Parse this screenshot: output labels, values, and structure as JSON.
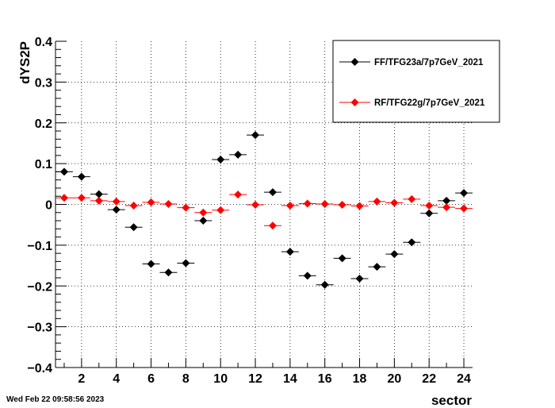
{
  "timestamp": "Wed Feb 22 09:58:56 2023",
  "chart_data": {
    "type": "scatter",
    "xlabel": "sector",
    "ylabel": "dYS2P",
    "xlim": [
      0.5,
      24.5
    ],
    "ylim": [
      -0.4,
      0.4
    ],
    "x_tick_labels": [
      "2",
      "4",
      "6",
      "8",
      "10",
      "12",
      "14",
      "16",
      "18",
      "20",
      "22",
      "24"
    ],
    "y_tick_labels": [
      "0.4",
      "0.3",
      "0.2",
      "0.1",
      "0",
      "−0.1",
      "−0.2",
      "−0.3",
      "−0.4"
    ],
    "grid": true,
    "legend_position": "top-right",
    "x": [
      1,
      2,
      3,
      4,
      5,
      6,
      7,
      8,
      9,
      10,
      11,
      12,
      13,
      14,
      15,
      16,
      17,
      18,
      19,
      20,
      21,
      22,
      23,
      24
    ],
    "series": [
      {
        "name": "FF/TFG23a/7p7GeV_2021",
        "color": "#000000",
        "values": [
          0.08,
          0.068,
          0.025,
          -0.013,
          -0.056,
          -0.146,
          -0.167,
          -0.144,
          -0.04,
          0.11,
          0.122,
          0.17,
          0.03,
          -0.116,
          -0.175,
          -0.197,
          -0.132,
          -0.182,
          -0.153,
          -0.122,
          -0.093,
          -0.022,
          0.009,
          0.028
        ]
      },
      {
        "name": "RF/TFG22g/7p7GeV_2021",
        "color": "#ff0000",
        "values": [
          0.016,
          0.016,
          0.009,
          0.007,
          -0.003,
          0.005,
          0.001,
          -0.008,
          -0.02,
          -0.014,
          0.024,
          -0.001,
          -0.052,
          -0.003,
          0.002,
          0.001,
          -0.001,
          -0.004,
          0.007,
          0.004,
          0.013,
          -0.003,
          -0.007,
          -0.01
        ]
      }
    ]
  }
}
